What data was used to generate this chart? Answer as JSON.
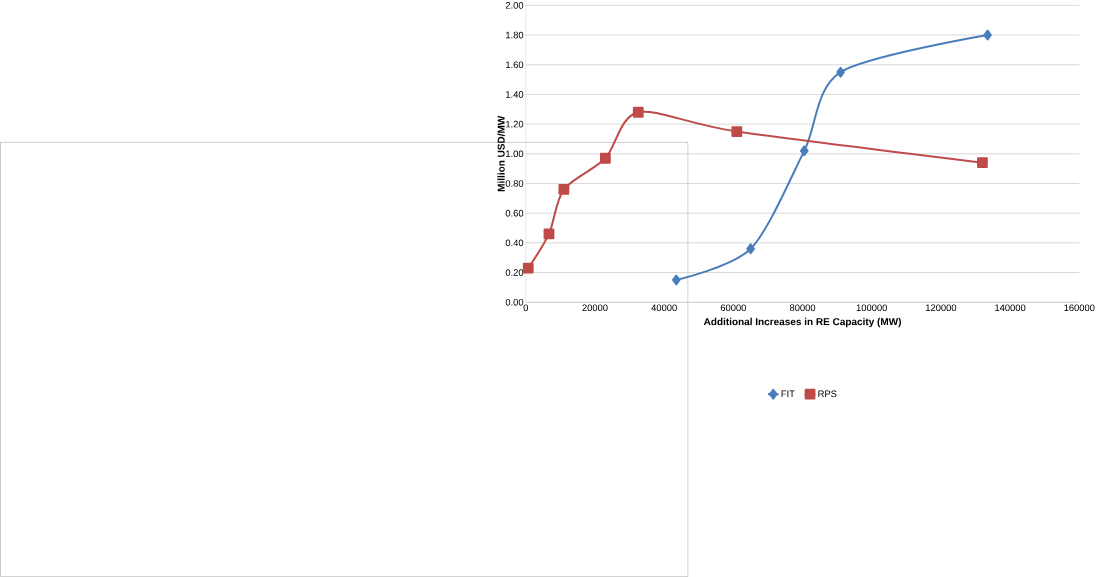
{
  "chart_data": {
    "type": "line",
    "xlabel": "Additional Increases in RE Capacity (MW)",
    "ylabel": "Million USD/MW",
    "xlim": [
      0,
      160000
    ],
    "xticks": [
      0,
      20000,
      40000,
      60000,
      80000,
      100000,
      120000,
      140000,
      160000
    ],
    "ylim": [
      0,
      2
    ],
    "yticks": [
      {
        "value": 0,
        "label": "0.00"
      },
      {
        "value": 0.2,
        "label": "0.20"
      },
      {
        "value": 0.4,
        "label": "0.40"
      },
      {
        "value": 0.6,
        "label": "0.60"
      },
      {
        "value": 0.8,
        "label": "0.80"
      },
      {
        "value": 1,
        "label": "1.00"
      },
      {
        "value": 1.2,
        "label": "1.20"
      },
      {
        "value": 1.4,
        "label": "1.40"
      },
      {
        "value": 1.6,
        "label": "1.60"
      },
      {
        "value": 1.8,
        "label": "1.80"
      },
      {
        "value": 2,
        "label": "2.00"
      }
    ],
    "grid": "y",
    "legend": "bottom",
    "line_style": "solid",
    "series": [
      {
        "name": "FIT",
        "color": "#4a7ebb",
        "marker": "diamond",
        "x": [
          43500,
          65000,
          80500,
          91000,
          133500
        ],
        "values": [
          0.15,
          0.36,
          1.02,
          1.55,
          1.8
        ]
      },
      {
        "name": "RPS",
        "color": "#be4b48",
        "marker": "square",
        "x": [
          700,
          6700,
          11000,
          23000,
          32500,
          61000,
          132000
        ],
        "values": [
          0.23,
          0.46,
          0.76,
          0.97,
          1.28,
          1.15,
          0.94
        ]
      }
    ]
  }
}
